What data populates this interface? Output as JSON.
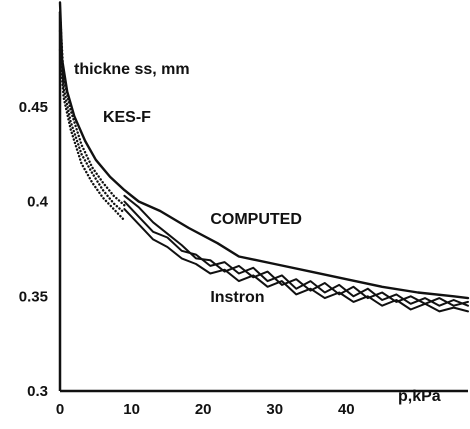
{
  "chart_data": {
    "type": "line",
    "title": "",
    "ylabel": "thickne ss, mm",
    "xlabel": "p,kPa",
    "xlim": [
      0,
      57
    ],
    "ylim": [
      0.3,
      0.5
    ],
    "grid": false,
    "legend": "none",
    "x_ticks": [
      {
        "value": 0,
        "label": "0"
      },
      {
        "value": 10,
        "label": "10"
      },
      {
        "value": 20,
        "label": "20"
      },
      {
        "value": 30,
        "label": "30"
      },
      {
        "value": 40,
        "label": "40"
      }
    ],
    "y_ticks": [
      {
        "value": 0.3,
        "label": "0.3"
      },
      {
        "value": 0.35,
        "label": "0.35"
      },
      {
        "value": 0.4,
        "label": "0.4"
      },
      {
        "value": 0.45,
        "label": "0.45"
      }
    ],
    "annotations": [
      {
        "text": "KES-F",
        "x": 6,
        "y": 0.442
      },
      {
        "text": "COMPUTED",
        "x": 21,
        "y": 0.388
      },
      {
        "text": "Instron",
        "x": 21,
        "y": 0.347
      }
    ],
    "series": [
      {
        "style": "solid",
        "points": [
          [
            0,
            0.505
          ],
          [
            0.3,
            0.475
          ],
          [
            1,
            0.458
          ],
          [
            2,
            0.445
          ],
          [
            3.5,
            0.432
          ],
          [
            5,
            0.422
          ],
          [
            7,
            0.413
          ],
          [
            9,
            0.406
          ],
          [
            11,
            0.4
          ],
          [
            14,
            0.395
          ],
          [
            18,
            0.386
          ],
          [
            22,
            0.378
          ],
          [
            25,
            0.371
          ],
          [
            30,
            0.367
          ],
          [
            35,
            0.363
          ],
          [
            40,
            0.359
          ],
          [
            45,
            0.355
          ],
          [
            50,
            0.352
          ],
          [
            55,
            0.35
          ],
          [
            57,
            0.349
          ]
        ]
      },
      {
        "style": "dotted",
        "points": [
          [
            0,
            0.5
          ],
          [
            0.5,
            0.465
          ],
          [
            1.5,
            0.448
          ],
          [
            3,
            0.43
          ],
          [
            4.5,
            0.418
          ],
          [
            6,
            0.41
          ],
          [
            7.5,
            0.403
          ],
          [
            9,
            0.398
          ]
        ]
      },
      {
        "style": "dotted",
        "points": [
          [
            0,
            0.49
          ],
          [
            0.5,
            0.46
          ],
          [
            1.5,
            0.442
          ],
          [
            3,
            0.425
          ],
          [
            4.5,
            0.415
          ],
          [
            6,
            0.406
          ],
          [
            7.5,
            0.399
          ],
          [
            9,
            0.394
          ]
        ]
      },
      {
        "style": "dotted",
        "points": [
          [
            0,
            0.48
          ],
          [
            0.5,
            0.455
          ],
          [
            1.5,
            0.438
          ],
          [
            3,
            0.42
          ],
          [
            4.5,
            0.41
          ],
          [
            6,
            0.402
          ],
          [
            7.5,
            0.396
          ],
          [
            9,
            0.39
          ]
        ]
      },
      {
        "style": "wavy",
        "points": [
          [
            9,
            0.4
          ],
          [
            11,
            0.392
          ],
          [
            13,
            0.384
          ],
          [
            15,
            0.381
          ],
          [
            17,
            0.374
          ],
          [
            19,
            0.372
          ],
          [
            21,
            0.366
          ],
          [
            23,
            0.368
          ],
          [
            25,
            0.362
          ],
          [
            27,
            0.365
          ],
          [
            29,
            0.358
          ],
          [
            31,
            0.361
          ],
          [
            33,
            0.354
          ],
          [
            35,
            0.358
          ],
          [
            37,
            0.352
          ],
          [
            39,
            0.356
          ],
          [
            41,
            0.35
          ],
          [
            43,
            0.354
          ],
          [
            45,
            0.348
          ],
          [
            47,
            0.351
          ],
          [
            49,
            0.346
          ],
          [
            51,
            0.349
          ],
          [
            53,
            0.345
          ],
          [
            55,
            0.348
          ],
          [
            57,
            0.345
          ]
        ]
      },
      {
        "style": "wavy",
        "points": [
          [
            9,
            0.396
          ],
          [
            11,
            0.388
          ],
          [
            13,
            0.38
          ],
          [
            15,
            0.376
          ],
          [
            17,
            0.37
          ],
          [
            19,
            0.367
          ],
          [
            21,
            0.362
          ],
          [
            23,
            0.364
          ],
          [
            25,
            0.358
          ],
          [
            27,
            0.361
          ],
          [
            29,
            0.355
          ],
          [
            31,
            0.358
          ],
          [
            33,
            0.351
          ],
          [
            35,
            0.354
          ],
          [
            37,
            0.349
          ],
          [
            39,
            0.352
          ],
          [
            41,
            0.347
          ],
          [
            43,
            0.35
          ],
          [
            45,
            0.345
          ],
          [
            47,
            0.348
          ],
          [
            49,
            0.343
          ],
          [
            51,
            0.346
          ],
          [
            53,
            0.342
          ],
          [
            55,
            0.344
          ],
          [
            57,
            0.342
          ]
        ]
      },
      {
        "style": "wavy",
        "points": [
          [
            9,
            0.403
          ],
          [
            11,
            0.397
          ],
          [
            13,
            0.389
          ],
          [
            15,
            0.383
          ],
          [
            17,
            0.377
          ],
          [
            19,
            0.37
          ],
          [
            21,
            0.369
          ],
          [
            23,
            0.363
          ],
          [
            25,
            0.366
          ],
          [
            27,
            0.36
          ],
          [
            29,
            0.363
          ],
          [
            31,
            0.356
          ],
          [
            33,
            0.359
          ],
          [
            35,
            0.353
          ],
          [
            37,
            0.357
          ],
          [
            39,
            0.351
          ],
          [
            41,
            0.355
          ],
          [
            43,
            0.349
          ],
          [
            45,
            0.352
          ],
          [
            47,
            0.347
          ],
          [
            49,
            0.35
          ],
          [
            51,
            0.346
          ],
          [
            53,
            0.349
          ],
          [
            55,
            0.345
          ],
          [
            57,
            0.347
          ]
        ]
      }
    ]
  }
}
